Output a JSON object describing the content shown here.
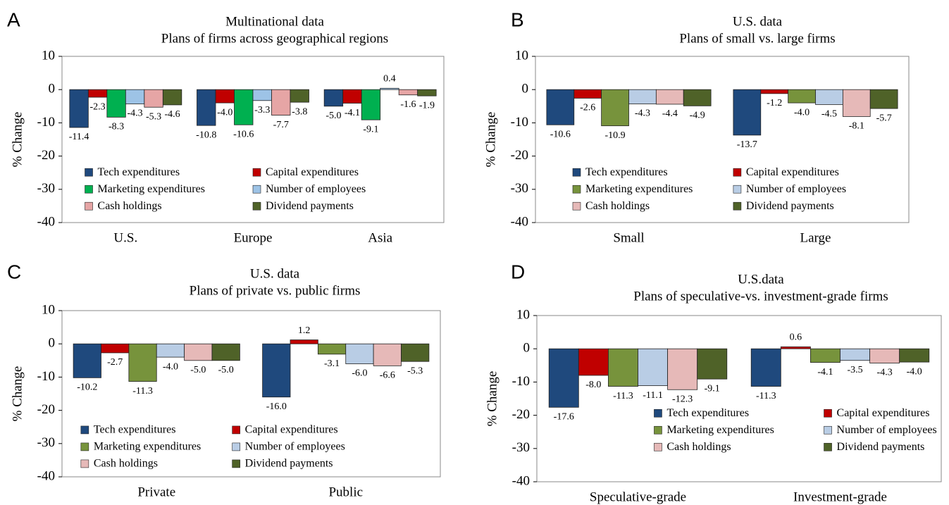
{
  "chart_data": [
    {
      "type": "bar",
      "panel": "A",
      "title": "Multinational data",
      "subtitle": "Plans of firms across geographical regions",
      "y_label": "% Change",
      "categories": [
        "U.S.",
        "Europe",
        "Asia"
      ],
      "ylim": [
        -40,
        10
      ],
      "yticks": [
        -40,
        -30,
        -20,
        -10,
        0,
        10
      ],
      "series": [
        {
          "name": "Tech expenditures",
          "color": "#1f497d",
          "values": [
            -11.4,
            -10.8,
            -5.0
          ],
          "value_labels": [
            "-11.4",
            "-10.8",
            "-5.0"
          ]
        },
        {
          "name": "Capital expenditures",
          "color": "#c00000",
          "values": [
            -2.3,
            -4.0,
            -4.1
          ],
          "value_labels": [
            "-2.3",
            "-4.0",
            "-4.1"
          ]
        },
        {
          "name": "Marketing expenditures",
          "color": "#00b050",
          "values": [
            -8.3,
            -10.6,
            -9.1
          ],
          "value_labels": [
            "-8.3",
            "-10.6",
            "-9.1"
          ]
        },
        {
          "name": "Number of employees",
          "color": "#9dc3e6",
          "values": [
            -4.3,
            -3.3,
            0.4
          ],
          "value_labels": [
            "-4.3",
            "-3.3",
            "0.4"
          ]
        },
        {
          "name": "Cash holdings",
          "color": "#e6a5a5",
          "values": [
            -5.3,
            -7.7,
            -1.6
          ],
          "value_labels": [
            "-5.3",
            "-7.7",
            "-1.6"
          ]
        },
        {
          "name": "Dividend payments",
          "color": "#4f6228",
          "values": [
            -4.6,
            -3.8,
            -1.9
          ],
          "value_labels": [
            "-4.6",
            "-3.8",
            "-1.9"
          ]
        }
      ]
    },
    {
      "type": "bar",
      "panel": "B",
      "title": "U.S. data",
      "subtitle": "Plans of small vs. large firms",
      "y_label": "% Change",
      "categories": [
        "Small",
        "Large"
      ],
      "ylim": [
        -40,
        10
      ],
      "yticks": [
        -40,
        -30,
        -20,
        -10,
        0,
        10
      ],
      "series": [
        {
          "name": "Tech expenditures",
          "color": "#1f497d",
          "values": [
            -10.6,
            -13.7
          ],
          "value_labels": [
            "-10.6",
            "-13.7"
          ]
        },
        {
          "name": "Capital expenditures",
          "color": "#c00000",
          "values": [
            -2.6,
            -1.2
          ],
          "value_labels": [
            "-2.6",
            "-1.2"
          ]
        },
        {
          "name": "Marketing expenditures",
          "color": "#77933c",
          "values": [
            -10.9,
            -4.0
          ],
          "value_labels": [
            "-10.9",
            "-4.0"
          ]
        },
        {
          "name": "Number of employees",
          "color": "#b9cde5",
          "values": [
            -4.3,
            -4.5
          ],
          "value_labels": [
            "-4.3",
            "-4.5"
          ]
        },
        {
          "name": "Cash holdings",
          "color": "#e6b9b8",
          "values": [
            -4.4,
            -8.1
          ],
          "value_labels": [
            "-4.4",
            "-8.1"
          ]
        },
        {
          "name": "Dividend payments",
          "color": "#4f6228",
          "values": [
            -4.9,
            -5.7
          ],
          "value_labels": [
            "-4.9",
            "-5.7"
          ]
        }
      ]
    },
    {
      "type": "bar",
      "panel": "C",
      "title": "U.S. data",
      "subtitle": "Plans of private vs. public firms",
      "y_label": "% Change",
      "categories": [
        "Private",
        "Public"
      ],
      "ylim": [
        -40,
        10
      ],
      "yticks": [
        -40,
        -30,
        -20,
        -10,
        0,
        10
      ],
      "series": [
        {
          "name": "Tech expenditures",
          "color": "#1f497d",
          "values": [
            -10.2,
            -16.0
          ],
          "value_labels": [
            "-10.2",
            "-16.0"
          ]
        },
        {
          "name": "Capital expenditures",
          "color": "#c00000",
          "values": [
            -2.7,
            1.2
          ],
          "value_labels": [
            "-2.7",
            "1.2"
          ]
        },
        {
          "name": "Marketing expenditures",
          "color": "#77933c",
          "values": [
            -11.3,
            -3.1
          ],
          "value_labels": [
            "-11.3",
            "-3.1"
          ]
        },
        {
          "name": "Number of employees",
          "color": "#b9cde5",
          "values": [
            -4.0,
            -6.0
          ],
          "value_labels": [
            "-4.0",
            "-6.0"
          ]
        },
        {
          "name": "Cash holdings",
          "color": "#e6b9b8",
          "values": [
            -5.0,
            -6.6
          ],
          "value_labels": [
            "-5.0",
            "-6.6"
          ]
        },
        {
          "name": "Dividend payments",
          "color": "#4f6228",
          "values": [
            -5.0,
            -5.3
          ],
          "value_labels": [
            "-5.0",
            "-5.3"
          ]
        }
      ]
    },
    {
      "type": "bar",
      "panel": "D",
      "title": "U.S.data",
      "subtitle": "Plans of speculative-vs. investment-grade firms",
      "y_label": "% Change",
      "categories": [
        "Speculative-grade",
        "Investment-grade"
      ],
      "ylim": [
        -40,
        10
      ],
      "yticks": [
        -40,
        -30,
        -20,
        -10,
        0,
        10
      ],
      "series": [
        {
          "name": "Tech expenditures",
          "color": "#1f497d",
          "values": [
            -17.6,
            -11.3
          ],
          "value_labels": [
            "-17.6",
            "-11.3"
          ]
        },
        {
          "name": "Capital expenditures",
          "color": "#c00000",
          "values": [
            -8.0,
            0.6
          ],
          "value_labels": [
            "-8.0",
            "0.6"
          ]
        },
        {
          "name": "Marketing expenditures",
          "color": "#77933c",
          "values": [
            -11.3,
            -4.1
          ],
          "value_labels": [
            "-11.3",
            "-4.1"
          ]
        },
        {
          "name": "Number of employees",
          "color": "#b9cde5",
          "values": [
            -11.1,
            -3.5
          ],
          "value_labels": [
            "-11.1",
            "-3.5"
          ]
        },
        {
          "name": "Cash holdings",
          "color": "#e6b9b8",
          "values": [
            -12.3,
            -4.3
          ],
          "value_labels": [
            "-12.3",
            "-4.3"
          ]
        },
        {
          "name": "Dividend payments",
          "color": "#4f6228",
          "values": [
            -9.1,
            -4.0
          ],
          "value_labels": [
            "-9.1",
            "-4.0"
          ]
        }
      ]
    }
  ]
}
